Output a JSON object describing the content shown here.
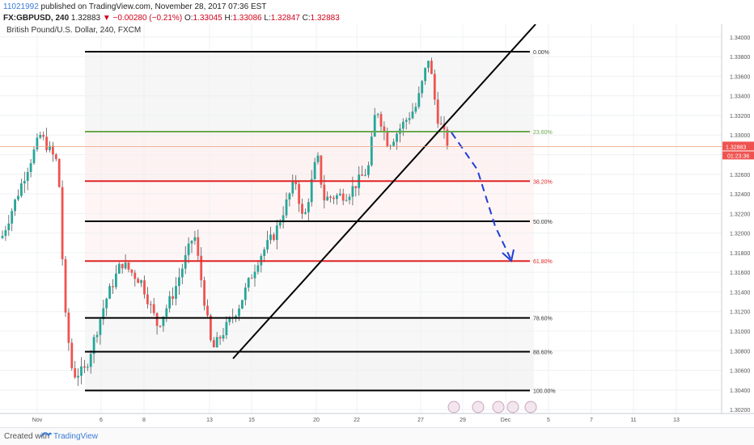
{
  "header": {
    "idea_id": "11021992",
    "published_text": "published on TradingView.com, November 28, 2017 07:36 EST",
    "symbol": "FX:GBPUSD, 240",
    "change": "▼ −0.00280 (−0.21%)",
    "o_label": "O:",
    "o_value": "1.33045",
    "h_label": "H:",
    "h_value": "1.33086",
    "l_label": "L:",
    "l_value": "1.32847",
    "c_label": "C:",
    "c_value": "1.32883",
    "last_price": "1.32883"
  },
  "chart_data": {
    "type": "candlestick",
    "title": "British Pound/U.S. Dollar, 240, FXCM",
    "ylim": [
      1.3016,
      1.3413
    ],
    "y_ticks": [
      "1.34000",
      "1.33800",
      "1.33600",
      "1.33400",
      "1.33200",
      "1.33000",
      "1.32800",
      "1.32600",
      "1.32400",
      "1.32200",
      "1.32000",
      "1.31800",
      "1.31600",
      "1.31400",
      "1.31200",
      "1.31000",
      "1.30800",
      "1.30600",
      "1.30400",
      "1.30200"
    ],
    "x_ticks": [
      "Nov",
      "6",
      "8",
      "13",
      "15",
      "20",
      "22",
      "27",
      "29",
      "Dec",
      "5",
      "7",
      "11",
      "13"
    ],
    "last_price": 1.32883,
    "countdown": "01:23:36",
    "fib_levels": [
      {
        "label": "0.00%",
        "price": 1.3385,
        "color": "#000000"
      },
      {
        "label": "23.60%",
        "price": 1.33035,
        "color": "#6aa84f"
      },
      {
        "label": "38.20%",
        "price": 1.3253,
        "color": "#e02424"
      },
      {
        "label": "50.00%",
        "price": 1.3212,
        "color": "#000000"
      },
      {
        "label": "61.80%",
        "price": 1.31715,
        "color": "#e02424"
      },
      {
        "label": "78.60%",
        "price": 1.31135,
        "color": "#000000"
      },
      {
        "label": "88.60%",
        "price": 1.3079,
        "color": "#000000"
      },
      {
        "label": "100.00%",
        "price": 1.30395,
        "color": "#000000"
      }
    ],
    "colors": {
      "up": "#26a69a",
      "down": "#ef5350",
      "grid": "#eef0f3"
    }
  },
  "footer": {
    "created": "Created with",
    "brand": "TradingView"
  }
}
